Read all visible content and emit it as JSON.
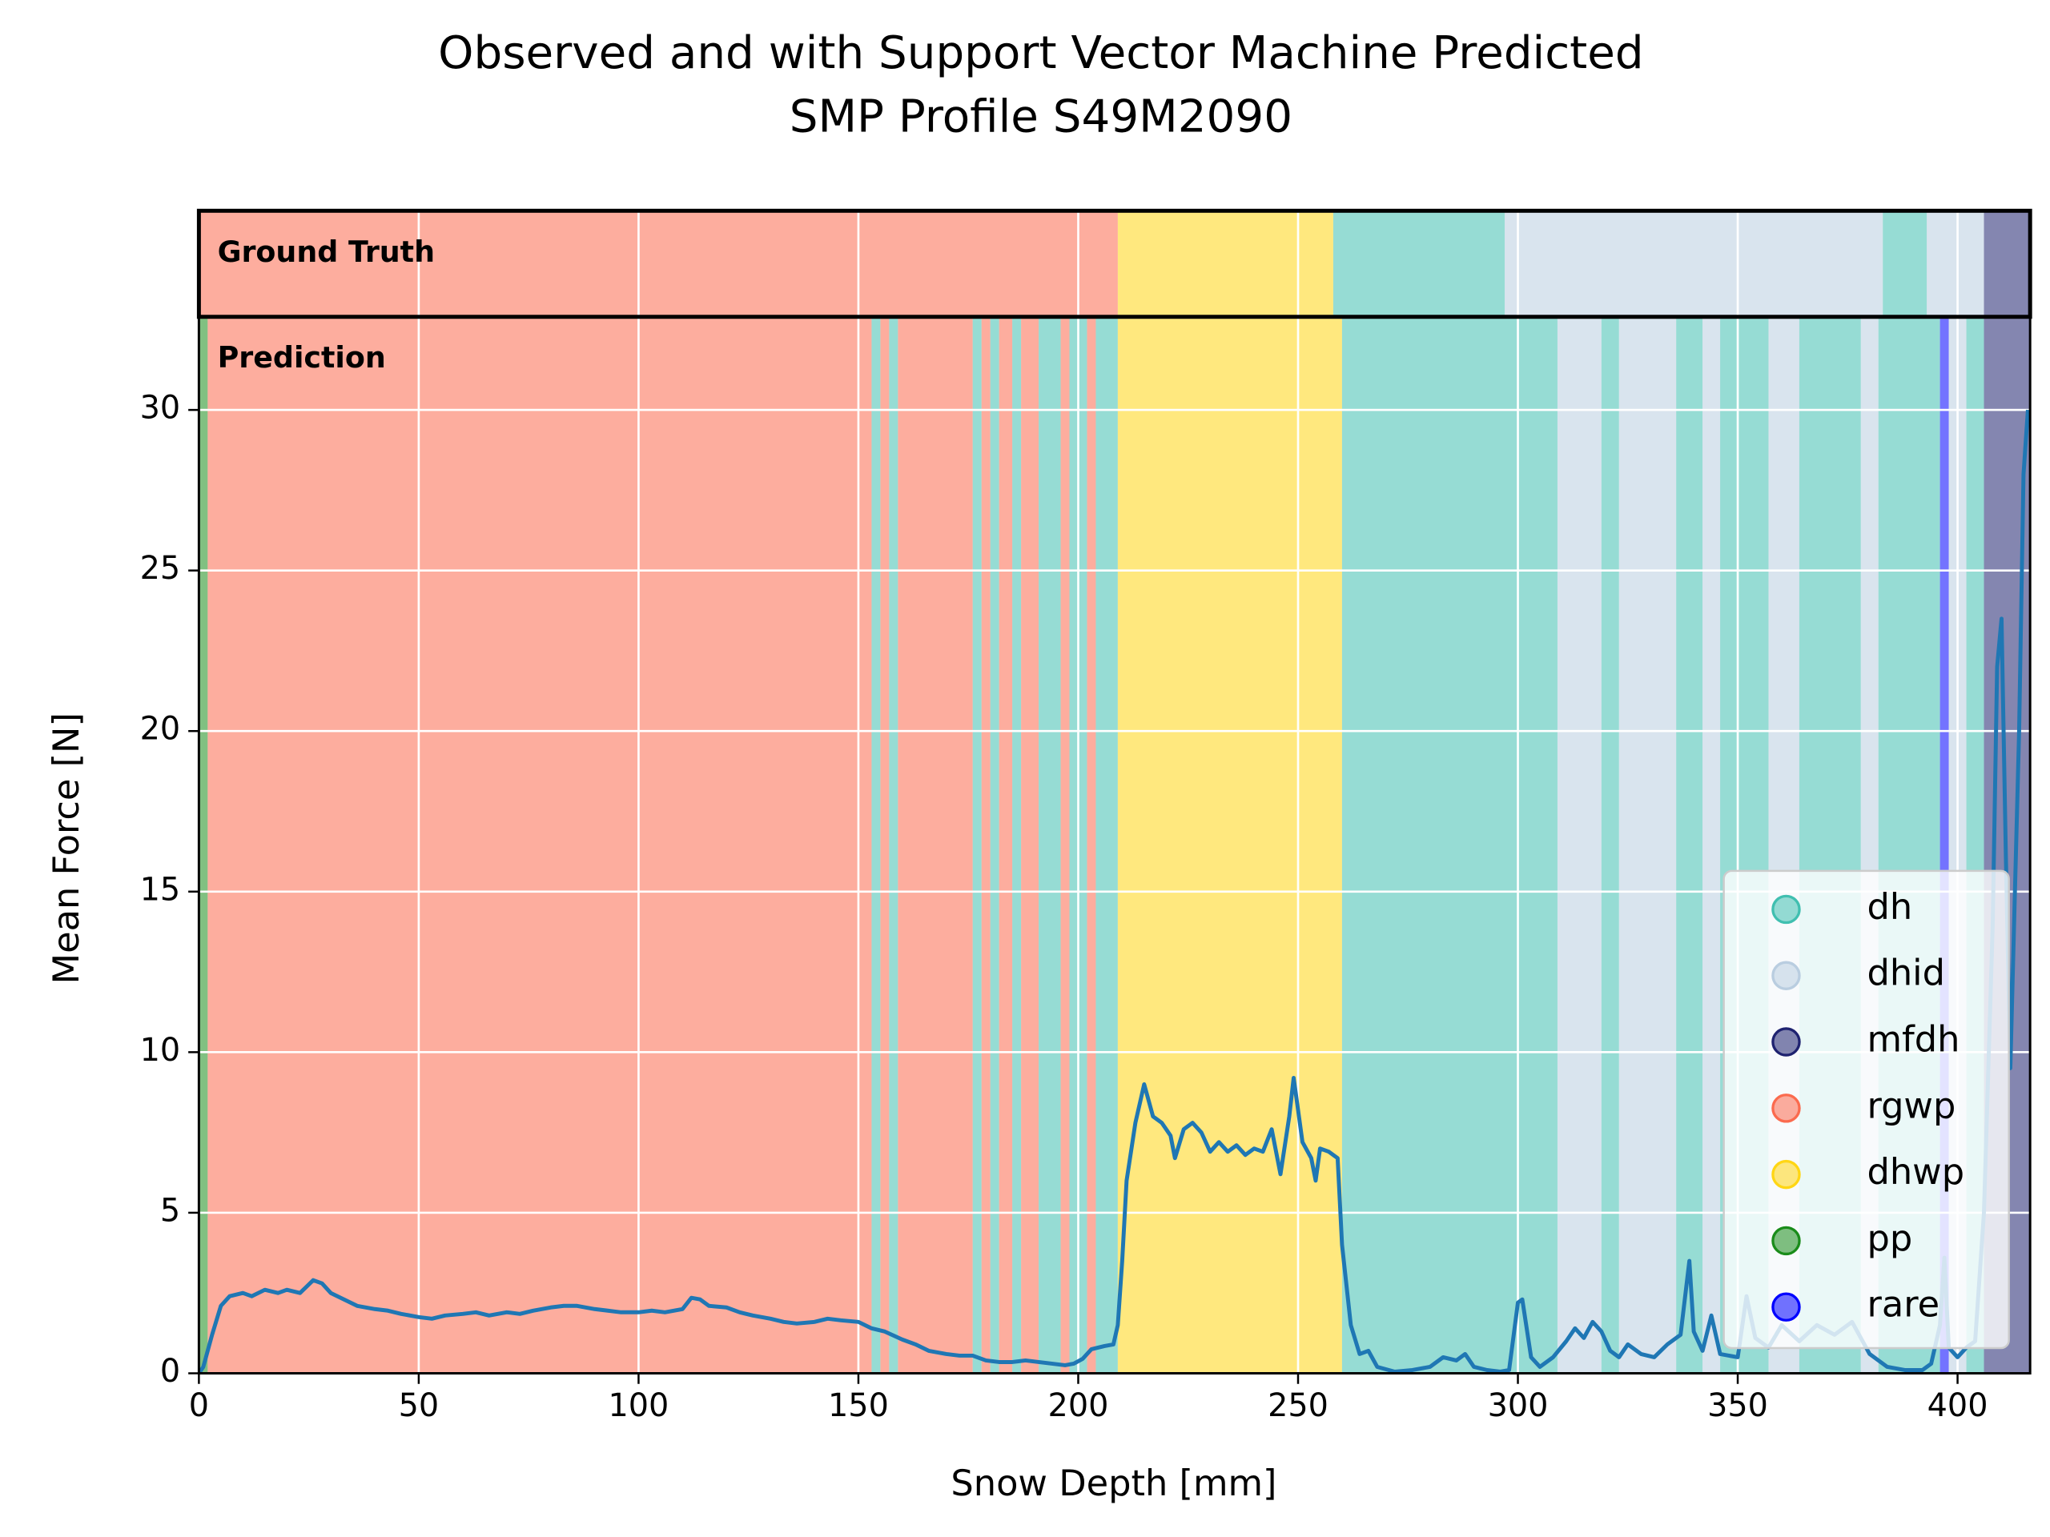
{
  "chart_data": {
    "type": "line",
    "title": "Observed and with Support Vector Machine Predicted",
    "subtitle": "SMP Profile S49M2090",
    "x_label": "Snow Depth [mm]",
    "y_label": "Mean Force [N]",
    "xlim": [
      0,
      416.5
    ],
    "ylim": [
      0,
      32.9
    ],
    "xticks": [
      0,
      50,
      100,
      150,
      200,
      250,
      300,
      350,
      400
    ],
    "yticks": [
      0,
      5,
      10,
      15,
      20,
      25,
      30
    ],
    "grid": true,
    "legend_position": "lower right",
    "classes": [
      {
        "name": "dh",
        "color": "#40bfb0"
      },
      {
        "name": "dhid",
        "color": "#b9cde0"
      },
      {
        "name": "mfdh",
        "color": "#1f2270"
      },
      {
        "name": "rgwp",
        "color": "#fb6a4e"
      },
      {
        "name": "dhwp",
        "color": "#ffd614"
      },
      {
        "name": "pp",
        "color": "#1a8c1a"
      },
      {
        "name": "rare",
        "color": "#0000ff"
      }
    ],
    "ground_truth": {
      "label": "Ground Truth",
      "segments": [
        {
          "class": "rgwp",
          "start": 0,
          "end": 209
        },
        {
          "class": "dhwp",
          "start": 209,
          "end": 258
        },
        {
          "class": "dh",
          "start": 258,
          "end": 297
        },
        {
          "class": "dhid",
          "start": 297,
          "end": 383
        },
        {
          "class": "dh",
          "start": 383,
          "end": 393
        },
        {
          "class": "dhid",
          "start": 393,
          "end": 406
        },
        {
          "class": "mfdh",
          "start": 406,
          "end": 416.5
        }
      ]
    },
    "prediction": {
      "label": "Prediction",
      "segments": [
        {
          "class": "pp",
          "start": 0,
          "end": 2
        },
        {
          "class": "rgwp",
          "start": 2,
          "end": 153
        },
        {
          "class": "dh",
          "start": 153,
          "end": 155
        },
        {
          "class": "rgwp",
          "start": 155,
          "end": 157
        },
        {
          "class": "dh",
          "start": 157,
          "end": 159
        },
        {
          "class": "rgwp",
          "start": 159,
          "end": 176
        },
        {
          "class": "dh",
          "start": 176,
          "end": 178
        },
        {
          "class": "rgwp",
          "start": 178,
          "end": 180
        },
        {
          "class": "dh",
          "start": 180,
          "end": 182
        },
        {
          "class": "rgwp",
          "start": 182,
          "end": 185
        },
        {
          "class": "dh",
          "start": 185,
          "end": 187
        },
        {
          "class": "rgwp",
          "start": 187,
          "end": 191
        },
        {
          "class": "dh",
          "start": 191,
          "end": 196
        },
        {
          "class": "rgwp",
          "start": 196,
          "end": 198
        },
        {
          "class": "dh",
          "start": 198,
          "end": 202
        },
        {
          "class": "rgwp",
          "start": 202,
          "end": 204
        },
        {
          "class": "dh",
          "start": 204,
          "end": 209
        },
        {
          "class": "dhwp",
          "start": 209,
          "end": 260
        },
        {
          "class": "dh",
          "start": 260,
          "end": 309
        },
        {
          "class": "dhid",
          "start": 309,
          "end": 319
        },
        {
          "class": "dh",
          "start": 319,
          "end": 323
        },
        {
          "class": "dhid",
          "start": 323,
          "end": 336
        },
        {
          "class": "dh",
          "start": 336,
          "end": 342
        },
        {
          "class": "dhid",
          "start": 342,
          "end": 346
        },
        {
          "class": "dh",
          "start": 346,
          "end": 357
        },
        {
          "class": "dhid",
          "start": 357,
          "end": 364
        },
        {
          "class": "dh",
          "start": 364,
          "end": 378
        },
        {
          "class": "dhid",
          "start": 378,
          "end": 382
        },
        {
          "class": "dh",
          "start": 382,
          "end": 396
        },
        {
          "class": "rare",
          "start": 396,
          "end": 398
        },
        {
          "class": "dhid",
          "start": 398,
          "end": 402
        },
        {
          "class": "dh",
          "start": 402,
          "end": 406
        },
        {
          "class": "mfdh",
          "start": 406,
          "end": 416.5
        }
      ]
    },
    "line_color": "#1f77b4",
    "x": [
      0,
      1,
      3,
      5,
      7,
      10,
      12,
      15,
      18,
      20,
      23,
      26,
      28,
      30,
      33,
      36,
      40,
      43,
      46,
      50,
      53,
      56,
      60,
      63,
      66,
      70,
      73,
      76,
      80,
      83,
      86,
      90,
      93,
      96,
      100,
      103,
      106,
      110,
      112,
      114,
      116,
      120,
      123,
      126,
      130,
      133,
      136,
      140,
      143,
      146,
      150,
      153,
      156,
      160,
      163,
      166,
      170,
      173,
      176,
      179,
      182,
      185,
      188,
      191,
      194,
      197,
      199,
      201,
      203,
      206,
      208,
      209,
      210,
      211,
      213,
      215,
      217,
      219,
      221,
      222,
      224,
      226,
      228,
      230,
      232,
      234,
      236,
      238,
      240,
      242,
      244,
      246,
      248,
      249,
      251,
      253,
      254,
      255,
      257,
      259,
      260,
      262,
      264,
      266,
      268,
      272,
      276,
      280,
      283,
      286,
      288,
      290,
      293,
      296,
      298,
      300,
      301,
      303,
      305,
      308,
      311,
      313,
      315,
      317,
      319,
      321,
      323,
      325,
      328,
      331,
      334,
      337,
      339,
      340,
      342,
      344,
      346,
      350,
      352,
      354,
      357,
      360,
      364,
      368,
      372,
      376,
      380,
      384,
      388,
      392,
      394,
      396,
      397,
      398,
      400,
      402,
      404,
      406,
      408,
      409,
      410,
      411,
      412,
      414,
      415,
      416
    ],
    "values": [
      0,
      0.2,
      1.2,
      2.1,
      2.4,
      2.5,
      2.4,
      2.6,
      2.5,
      2.6,
      2.5,
      2.9,
      2.8,
      2.5,
      2.3,
      2.1,
      2.0,
      1.95,
      1.85,
      1.75,
      1.7,
      1.8,
      1.85,
      1.9,
      1.8,
      1.9,
      1.85,
      1.95,
      2.05,
      2.1,
      2.1,
      2.0,
      1.95,
      1.9,
      1.9,
      1.95,
      1.9,
      2.0,
      2.35,
      2.3,
      2.1,
      2.05,
      1.9,
      1.8,
      1.7,
      1.6,
      1.55,
      1.6,
      1.7,
      1.65,
      1.6,
      1.4,
      1.3,
      1.05,
      0.9,
      0.7,
      0.6,
      0.55,
      0.55,
      0.4,
      0.35,
      0.35,
      0.4,
      0.35,
      0.3,
      0.25,
      0.3,
      0.45,
      0.75,
      0.85,
      0.9,
      1.5,
      3.5,
      6.0,
      7.8,
      9.0,
      8.0,
      7.8,
      7.4,
      6.7,
      7.6,
      7.8,
      7.5,
      6.9,
      7.2,
      6.9,
      7.1,
      6.8,
      7.0,
      6.9,
      7.6,
      6.2,
      8.0,
      9.2,
      7.2,
      6.7,
      6.0,
      7.0,
      6.9,
      6.7,
      4.0,
      1.5,
      0.6,
      0.7,
      0.2,
      0.05,
      0.1,
      0.2,
      0.5,
      0.4,
      0.6,
      0.2,
      0.1,
      0.05,
      0.1,
      2.2,
      2.3,
      0.5,
      0.2,
      0.5,
      1.0,
      1.4,
      1.1,
      1.6,
      1.3,
      0.7,
      0.5,
      0.9,
      0.6,
      0.5,
      0.9,
      1.2,
      3.5,
      1.3,
      0.7,
      1.8,
      0.6,
      0.5,
      2.4,
      1.1,
      0.8,
      1.5,
      1.0,
      1.5,
      1.2,
      1.6,
      0.6,
      0.2,
      0.1,
      0.1,
      0.3,
      1.5,
      3.6,
      0.8,
      0.5,
      0.8,
      1.0,
      5.0,
      14.0,
      22.0,
      23.5,
      16.0,
      9.5,
      20.0,
      28.0,
      30.0
    ]
  }
}
